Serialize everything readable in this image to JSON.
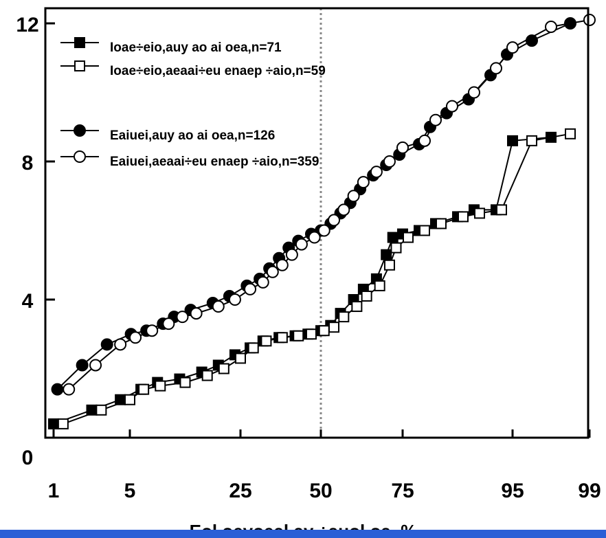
{
  "chart_data": {
    "type": "scatter",
    "title": "",
    "xlabel": "Eol oeyoeal ay ÷auol oa, %",
    "ylabel": "",
    "xlim": [
      0,
      100
    ],
    "ylim": [
      0,
      12
    ],
    "x_ticks": [
      {
        "label": "1",
        "at": 1
      },
      {
        "label": "5",
        "at": 5
      },
      {
        "label": "25",
        "at": 25
      },
      {
        "label": "50",
        "at": 50
      },
      {
        "label": "75",
        "at": 75
      },
      {
        "label": "95",
        "at": 95
      },
      {
        "label": "99",
        "at": 99
      }
    ],
    "y_ticks": [
      {
        "label": "0",
        "at": 0
      },
      {
        "label": "4",
        "at": 4
      },
      {
        "label": "8",
        "at": 8
      },
      {
        "label": "12",
        "at": 12
      }
    ],
    "vline": {
      "x": 50,
      "style": "dotted",
      "color": "#888888"
    },
    "legend_position": "top-left",
    "series": [
      {
        "name": "Ioae÷eio,auy ao ai oea,n=71",
        "marker": "square",
        "fill": "#000000",
        "line": "#000000",
        "points": [
          [
            1,
            0.4
          ],
          [
            3,
            0.8
          ],
          [
            4.5,
            1.1
          ],
          [
            7,
            1.4
          ],
          [
            10,
            1.6
          ],
          [
            14,
            1.7
          ],
          [
            18,
            1.9
          ],
          [
            21,
            2.1
          ],
          [
            24,
            2.4
          ],
          [
            28,
            2.6
          ],
          [
            32,
            2.8
          ],
          [
            37,
            2.9
          ],
          [
            42,
            2.95
          ],
          [
            46,
            3.0
          ],
          [
            50,
            3.1
          ],
          [
            53,
            3.25
          ],
          [
            56,
            3.6
          ],
          [
            60,
            4.0
          ],
          [
            63,
            4.3
          ],
          [
            67,
            4.6
          ],
          [
            70,
            5.3
          ],
          [
            72,
            5.8
          ],
          [
            75,
            5.9
          ],
          [
            78,
            6.0
          ],
          [
            81,
            6.2
          ],
          [
            85,
            6.4
          ],
          [
            88,
            6.6
          ],
          [
            92,
            6.6
          ],
          [
            95,
            8.6
          ],
          [
            97,
            8.7
          ]
        ]
      },
      {
        "name": "Ioae÷eio,aeaai÷eu enaep ÷aio,n=59",
        "marker": "square",
        "fill": "#ffffff",
        "line": "#000000",
        "points": [
          [
            1.5,
            0.4
          ],
          [
            3.5,
            0.8
          ],
          [
            5,
            1.1
          ],
          [
            7.5,
            1.4
          ],
          [
            10.5,
            1.5
          ],
          [
            15,
            1.6
          ],
          [
            19,
            1.8
          ],
          [
            22,
            2.0
          ],
          [
            25,
            2.3
          ],
          [
            29,
            2.6
          ],
          [
            33,
            2.8
          ],
          [
            38,
            2.9
          ],
          [
            43,
            2.95
          ],
          [
            47,
            3.0
          ],
          [
            51,
            3.1
          ],
          [
            54,
            3.2
          ],
          [
            57,
            3.5
          ],
          [
            61,
            3.8
          ],
          [
            64,
            4.1
          ],
          [
            68,
            4.4
          ],
          [
            71,
            5.0
          ],
          [
            73,
            5.5
          ],
          [
            76,
            5.8
          ],
          [
            79,
            6.0
          ],
          [
            82,
            6.2
          ],
          [
            86,
            6.4
          ],
          [
            89,
            6.5
          ],
          [
            93,
            6.6
          ],
          [
            96,
            8.6
          ],
          [
            98,
            8.8
          ]
        ]
      },
      {
        "name": "Eaiuei,auy ao ai oea,n=126",
        "marker": "circle",
        "fill": "#000000",
        "line": "#000000",
        "points": [
          [
            1.2,
            1.4
          ],
          [
            2.5,
            2.1
          ],
          [
            3.8,
            2.7
          ],
          [
            5.2,
            3.0
          ],
          [
            8,
            3.1
          ],
          [
            11,
            3.3
          ],
          [
            13,
            3.5
          ],
          [
            16,
            3.7
          ],
          [
            20,
            3.9
          ],
          [
            23,
            4.1
          ],
          [
            27,
            4.4
          ],
          [
            31,
            4.6
          ],
          [
            34,
            4.9
          ],
          [
            37,
            5.2
          ],
          [
            40,
            5.5
          ],
          [
            43,
            5.7
          ],
          [
            47,
            5.9
          ],
          [
            50,
            6.0
          ],
          [
            53,
            6.2
          ],
          [
            56,
            6.5
          ],
          [
            59,
            6.8
          ],
          [
            62,
            7.2
          ],
          [
            66,
            7.6
          ],
          [
            70,
            7.9
          ],
          [
            74,
            8.2
          ],
          [
            78,
            8.5
          ],
          [
            80,
            9.0
          ],
          [
            83,
            9.4
          ],
          [
            87,
            9.8
          ],
          [
            91,
            10.5
          ],
          [
            94,
            11.1
          ],
          [
            96,
            11.5
          ],
          [
            98,
            12.0
          ]
        ]
      },
      {
        "name": "Eaiuei,aeaai÷eu enaep ÷aio,n=359",
        "marker": "circle",
        "fill": "#ffffff",
        "line": "#000000",
        "points": [
          [
            1.8,
            1.4
          ],
          [
            3.2,
            2.1
          ],
          [
            4.5,
            2.7
          ],
          [
            6,
            2.9
          ],
          [
            9,
            3.1
          ],
          [
            12,
            3.3
          ],
          [
            14.5,
            3.5
          ],
          [
            17,
            3.6
          ],
          [
            21,
            3.8
          ],
          [
            24,
            4.0
          ],
          [
            28,
            4.3
          ],
          [
            32,
            4.5
          ],
          [
            35,
            4.8
          ],
          [
            38,
            5.0
          ],
          [
            41,
            5.3
          ],
          [
            44,
            5.6
          ],
          [
            48,
            5.8
          ],
          [
            51,
            6.0
          ],
          [
            54,
            6.3
          ],
          [
            57,
            6.6
          ],
          [
            60,
            7.0
          ],
          [
            63,
            7.4
          ],
          [
            67,
            7.7
          ],
          [
            71,
            8.0
          ],
          [
            75,
            8.4
          ],
          [
            79,
            8.6
          ],
          [
            81,
            9.2
          ],
          [
            84,
            9.6
          ],
          [
            88,
            10.0
          ],
          [
            92,
            10.7
          ],
          [
            95,
            11.3
          ],
          [
            97,
            11.9
          ],
          [
            99,
            12.1
          ]
        ]
      }
    ]
  }
}
